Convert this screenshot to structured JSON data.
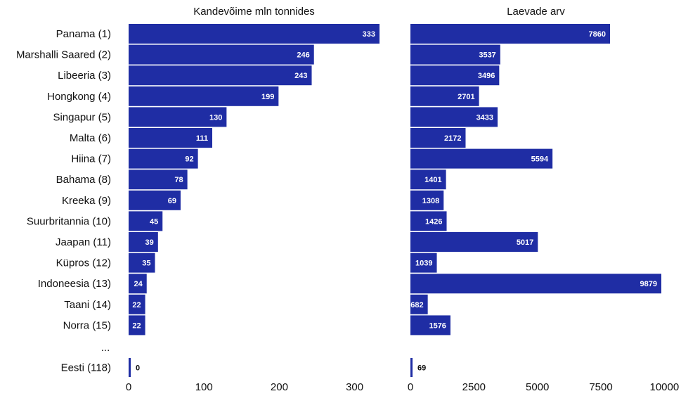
{
  "chart_data": {
    "type": "bar",
    "orientation": "horizontal",
    "bar_color": "#1f2da4",
    "categories": [
      "Panama (1)",
      "Marshalli Saared (2)",
      "Libeeria (3)",
      "Hongkong (4)",
      "Singapur (5)",
      "Malta (6)",
      "Hiina (7)",
      "Bahama (8)",
      "Kreeka (9)",
      "Suurbritannia (10)",
      "Jaapan (11)",
      "Küpros (12)",
      "Indoneesia (13)",
      "Taani (14)",
      "Norra (15)"
    ],
    "gap_label": "...",
    "extra_category": "Eesti (118)",
    "panels": [
      {
        "title": "Kandevõime mln tonnides",
        "values": [
          333,
          246,
          243,
          199,
          130,
          111,
          92,
          78,
          69,
          45,
          39,
          35,
          24,
          22,
          22
        ],
        "extra_value": 0,
        "xlim": [
          0,
          350
        ],
        "ticks": [
          0,
          100,
          200,
          300
        ]
      },
      {
        "title": "Laevade arv",
        "values": [
          7860,
          3537,
          3496,
          2701,
          3433,
          2172,
          5594,
          1401,
          1308,
          1426,
          5017,
          1039,
          9879,
          682,
          1576
        ],
        "extra_value": 69,
        "xlim": [
          0,
          10000
        ],
        "ticks": [
          0,
          2500,
          5000,
          7500,
          10000
        ]
      }
    ]
  }
}
